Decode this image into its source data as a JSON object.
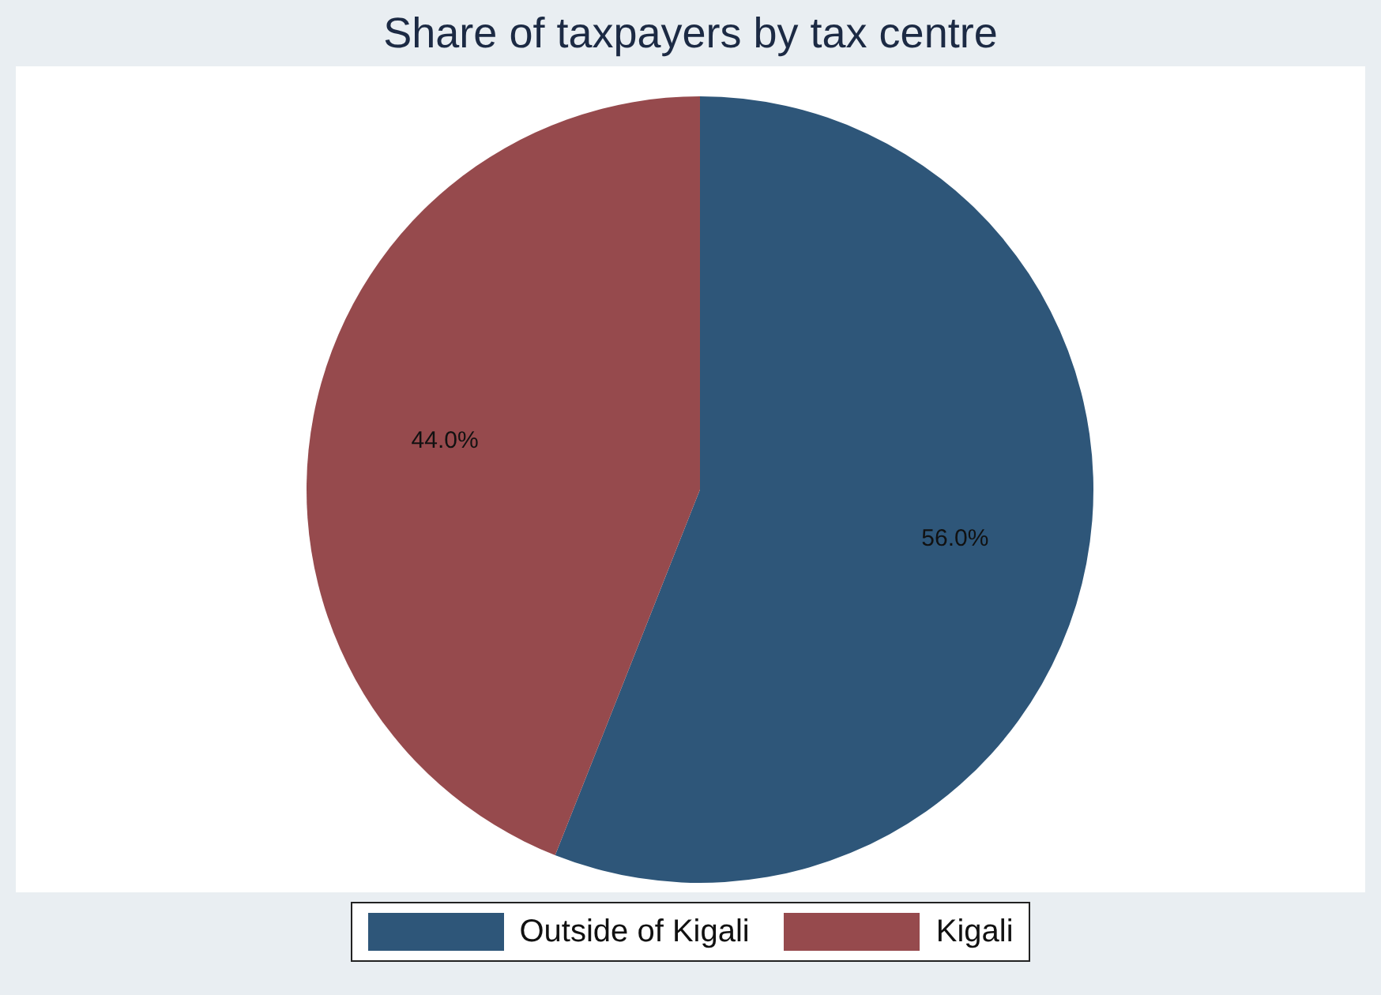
{
  "chart_data": {
    "type": "pie",
    "title": "Share of taxpayers by tax centre",
    "categories": [
      "Outside of Kigali",
      "Kigali"
    ],
    "values": [
      56.0,
      44.0
    ],
    "colors": [
      "#2e5679",
      "#964a4d"
    ],
    "value_labels": [
      "56.0%",
      "44.0%"
    ],
    "legend": "bottom"
  }
}
